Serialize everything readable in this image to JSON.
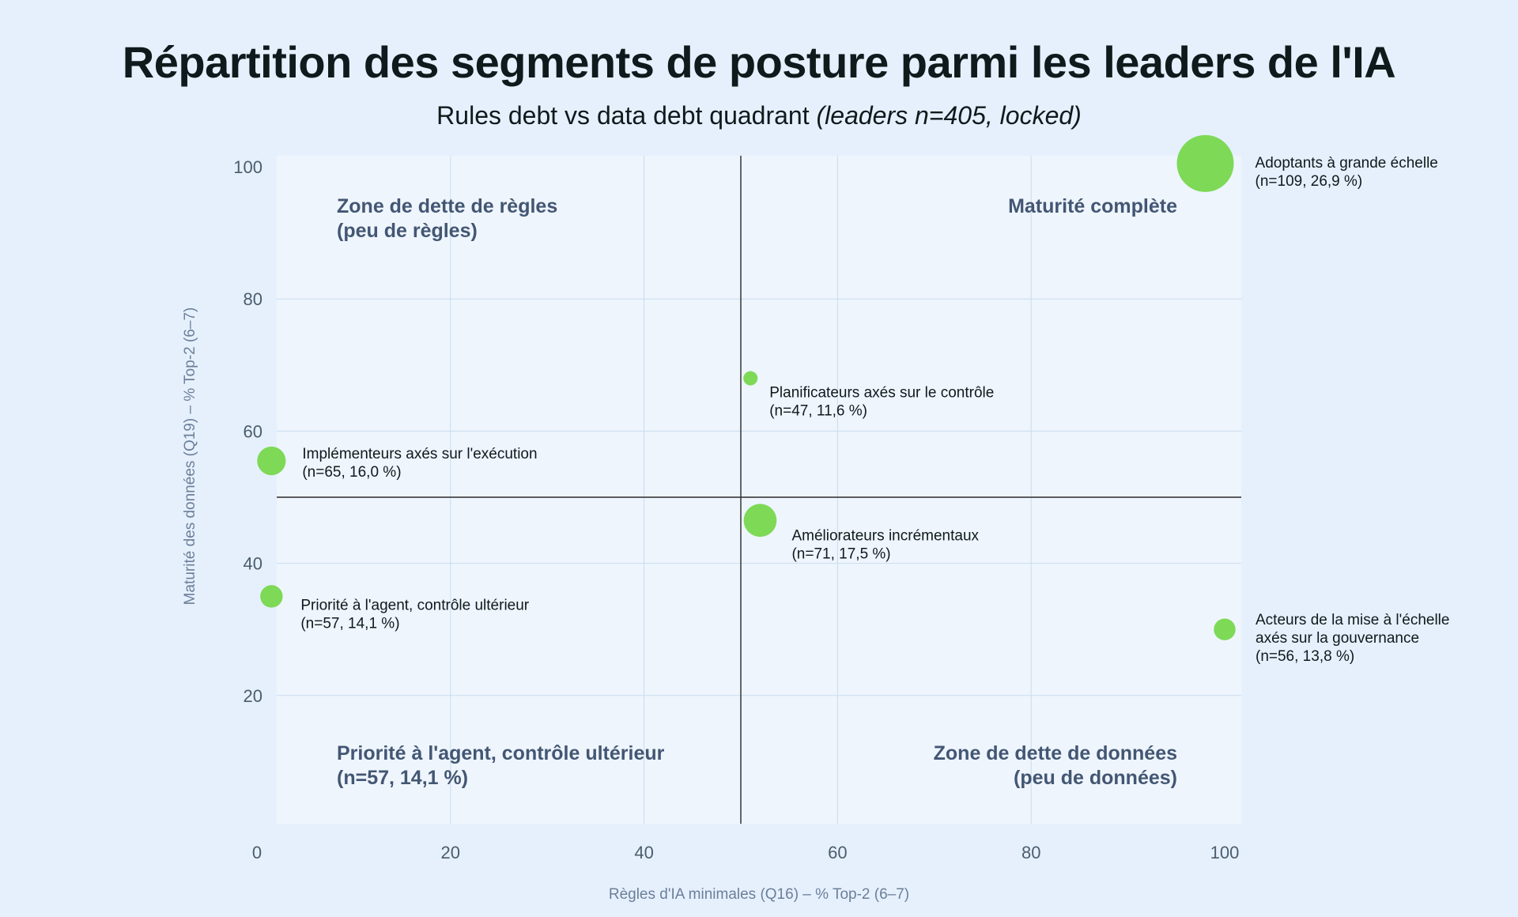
{
  "title": "Répartition des segments de posture parmi les leaders de l'IA",
  "subtitle_main": "Rules debt vs data debt quadrant ",
  "subtitle_note": "(leaders n=405, locked)",
  "colors": {
    "background": "#e6f0fd",
    "plot_bg": "#eef5fd",
    "grid": "#c9dcef",
    "divider": "#2a2a2a",
    "bubble": "#7ed957",
    "quadrant_label": "#435673",
    "axis_title": "#6b7f99"
  },
  "chart_data": {
    "type": "scatter",
    "xlabel": "Règles d'IA minimales (Q16) – % Top-2 (6–7)",
    "ylabel": "Maturité des données (Q19) – % Top-2 (6–7)",
    "xlim": [
      0,
      100
    ],
    "ylim": [
      0,
      100
    ],
    "x_ticks": [
      0,
      20,
      40,
      60,
      80,
      100
    ],
    "y_ticks": [
      20,
      40,
      60,
      80,
      100
    ],
    "grid": true,
    "dividers": {
      "x": 50,
      "y": 50
    },
    "points": [
      {
        "name": "Adoptants à grande échelle",
        "detail": "(n=109, 26,9 %)",
        "x": 98,
        "y": 100.5,
        "n": 109,
        "pct": 26.9
      },
      {
        "name": "Planificateurs axés sur le contrôle",
        "detail": "(n=47, 11,6 %)",
        "x": 51,
        "y": 68,
        "n": 47,
        "pct": 11.6
      },
      {
        "name": "Implémenteurs axés sur l'exécution",
        "detail": "(n=65, 16,0 %)",
        "x": 1.5,
        "y": 55.5,
        "n": 65,
        "pct": 16.0
      },
      {
        "name": "Améliorateurs incrémentaux",
        "detail": "(n=71, 17,5 %)",
        "x": 52,
        "y": 46.5,
        "n": 71,
        "pct": 17.5
      },
      {
        "name": "Priorité à l'agent, contrôle ultérieur",
        "detail": "(n=57, 14,1 %)",
        "x": 1.5,
        "y": 35,
        "n": 57,
        "pct": 14.1
      },
      {
        "name": "Acteurs de la mise à l'échelle axés sur la gouvernance",
        "name_lines": [
          "Acteurs de la mise à l'échelle",
          "axés sur la gouvernance"
        ],
        "detail": "(n=56, 13,8 %)",
        "x": 100,
        "y": 30,
        "n": 56,
        "pct": 13.8
      }
    ],
    "quadrant_labels": [
      {
        "lines": [
          "Zone de dette de règles",
          "(peu de règles)"
        ],
        "position": "top-left"
      },
      {
        "lines": [
          "Maturité complète"
        ],
        "position": "top-right"
      },
      {
        "lines": [
          "Priorité à l'agent, contrôle ultérieur",
          "(n=57, 14,1 %)"
        ],
        "position": "bottom-left"
      },
      {
        "lines": [
          "Zone de dette de données",
          "(peu de données)"
        ],
        "position": "bottom-right"
      }
    ]
  }
}
